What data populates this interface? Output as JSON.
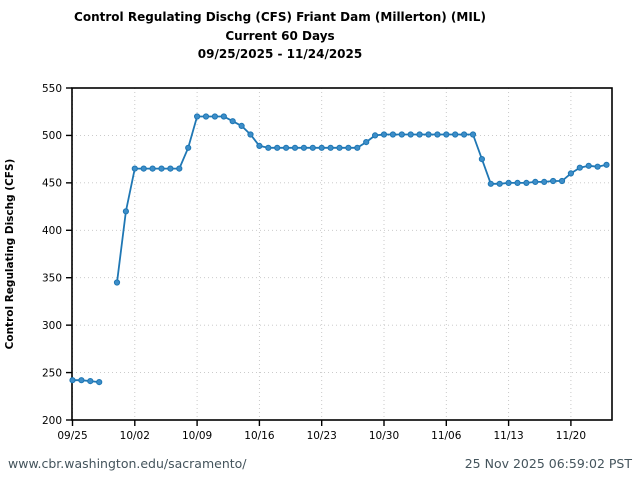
{
  "title": {
    "line1": "Control Regulating Dischg (CFS) Friant Dam (Millerton) (MIL)",
    "line2": "Current 60 Days",
    "line3": "09/25/2025 - 11/24/2025"
  },
  "y_axis_label": "Control Regulating Dischg (CFS)",
  "footer": {
    "url": "www.cbr.washington.edu/sacramento/",
    "timestamp": "25 Nov 2025 06:59:02 PST"
  },
  "colors": {
    "line": "#1f77b4",
    "marker_fill": "#3d8ec9",
    "grid": "#c4c4c4",
    "frame": "#000000",
    "tick_text": "#000000",
    "footer_text": "#44545c"
  },
  "chart_data": {
    "type": "line",
    "title": "Control Regulating Dischg (CFS) Friant Dam (Millerton) (MIL)",
    "subtitle": "Current 60 Days",
    "date_range": "09/25/2025 - 11/24/2025",
    "xlabel": "",
    "ylabel": "Control Regulating Dischg (CFS)",
    "ylim": [
      200,
      550
    ],
    "y_ticks": [
      200,
      250,
      300,
      350,
      400,
      450,
      500,
      550
    ],
    "x_tick_labels": [
      "09/25",
      "10/02",
      "10/09",
      "10/16",
      "10/23",
      "10/30",
      "11/06",
      "11/13",
      "11/20"
    ],
    "x_tick_indices": [
      0,
      7,
      14,
      21,
      28,
      35,
      42,
      49,
      56
    ],
    "grid": true,
    "legend_position": "none",
    "gap_note": "no data point on 09/29",
    "x": [
      "09/25",
      "09/26",
      "09/27",
      "09/28",
      "09/29",
      "09/30",
      "10/01",
      "10/02",
      "10/03",
      "10/04",
      "10/05",
      "10/06",
      "10/07",
      "10/08",
      "10/09",
      "10/10",
      "10/11",
      "10/12",
      "10/13",
      "10/14",
      "10/15",
      "10/16",
      "10/17",
      "10/18",
      "10/19",
      "10/20",
      "10/21",
      "10/22",
      "10/23",
      "10/24",
      "10/25",
      "10/26",
      "10/27",
      "10/28",
      "10/29",
      "10/30",
      "10/31",
      "11/01",
      "11/02",
      "11/03",
      "11/04",
      "11/05",
      "11/06",
      "11/07",
      "11/08",
      "11/09",
      "11/10",
      "11/11",
      "11/12",
      "11/13",
      "11/14",
      "11/15",
      "11/16",
      "11/17",
      "11/18",
      "11/19",
      "11/20",
      "11/21",
      "11/22",
      "11/23",
      "11/24"
    ],
    "series": [
      {
        "name": "Control Regulating Dischg (CFS)",
        "values": [
          242,
          242,
          241,
          240,
          null,
          345,
          420,
          465,
          465,
          465,
          465,
          465,
          465,
          487,
          520,
          520,
          520,
          520,
          515,
          510,
          501,
          489,
          487,
          487,
          487,
          487,
          487,
          487,
          487,
          487,
          487,
          487,
          487,
          493,
          500,
          501,
          501,
          501,
          501,
          501,
          501,
          501,
          501,
          501,
          501,
          501,
          475,
          449,
          449,
          450,
          450,
          450,
          451,
          451,
          452,
          452,
          460,
          466,
          468,
          467,
          469
        ]
      }
    ]
  }
}
